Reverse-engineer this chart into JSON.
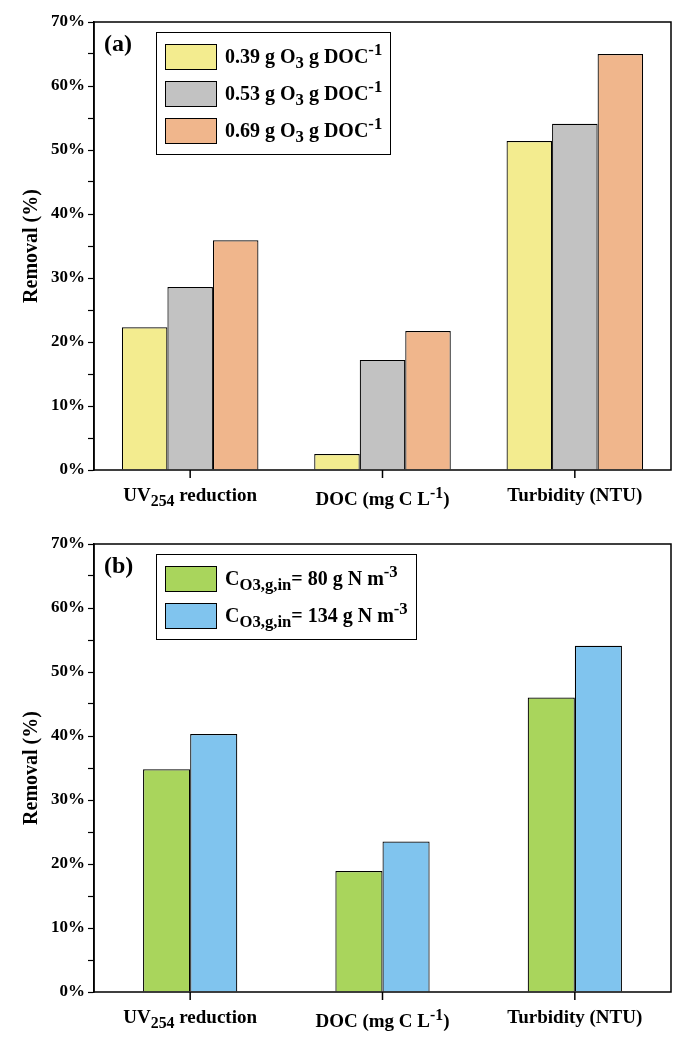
{
  "chart_data": [
    {
      "type": "bar",
      "annotations": [
        "(a)"
      ],
      "ylabel": "Removal (%)",
      "categories": [
        "UV$_{254}$ reduction",
        "DOC (mg C L$^{-1}$)",
        "Turbidity (NTU)"
      ],
      "series": [
        {
          "name": "0.39 g O$_{3}$ g DOC$^{-1}$",
          "color": "#f3ec8f",
          "values": [
            22.3,
            2.5,
            51.4
          ]
        },
        {
          "name": "0.53 g O$_{3}$ g DOC$^{-1}$",
          "color": "#c2c2c2",
          "values": [
            28.6,
            17.2,
            54.1
          ]
        },
        {
          "name": "0.69 g O$_{3}$ g DOC$^{-1}$",
          "color": "#f0b68c",
          "values": [
            35.9,
            21.7,
            65.0
          ]
        }
      ],
      "ylim": [
        0,
        70
      ],
      "yticks": [
        {
          "value": 0,
          "label": "0%"
        },
        {
          "value": 5,
          "label": null
        },
        {
          "value": 10,
          "label": "10%"
        },
        {
          "value": 15,
          "label": null
        },
        {
          "value": 20,
          "label": "20%"
        },
        {
          "value": 25,
          "label": null
        },
        {
          "value": 30,
          "label": "30%"
        },
        {
          "value": 35,
          "label": null
        },
        {
          "value": 40,
          "label": "40%"
        },
        {
          "value": 45,
          "label": null
        },
        {
          "value": 50,
          "label": "50%"
        },
        {
          "value": 55,
          "label": null
        },
        {
          "value": 60,
          "label": "60%"
        },
        {
          "value": 65,
          "label": null
        },
        {
          "value": 70,
          "label": "70%"
        }
      ],
      "legend": "top left"
    },
    {
      "type": "bar",
      "annotations": [
        "(b)"
      ],
      "ylabel": "Removal (%)",
      "categories": [
        "UV$_{254}$ reduction",
        "DOC (mg C L$^{-1}$)",
        "Turbidity (NTU)"
      ],
      "series": [
        {
          "name": "C$_{O3,g,in}$= 80 g N m$^{-3}$",
          "color": "#a9d55c",
          "values": [
            34.8,
            18.9,
            46.0
          ]
        },
        {
          "name": "C$_{O3,g,in}$= 134 g N m$^{-3}$",
          "color": "#80c4ee",
          "values": [
            40.3,
            23.5,
            54.1
          ]
        }
      ],
      "ylim": [
        0,
        70
      ],
      "yticks": [
        {
          "value": 0,
          "label": "0%"
        },
        {
          "value": 5,
          "label": null
        },
        {
          "value": 10,
          "label": "10%"
        },
        {
          "value": 15,
          "label": null
        },
        {
          "value": 20,
          "label": "20%"
        },
        {
          "value": 25,
          "label": null
        },
        {
          "value": 30,
          "label": "30%"
        },
        {
          "value": 35,
          "label": null
        },
        {
          "value": 40,
          "label": "40%"
        },
        {
          "value": 45,
          "label": null
        },
        {
          "value": 50,
          "label": "50%"
        },
        {
          "value": 55,
          "label": null
        },
        {
          "value": 60,
          "label": "60%"
        },
        {
          "value": 65,
          "label": null
        },
        {
          "value": 70,
          "label": "70%"
        }
      ],
      "legend": "top left"
    }
  ]
}
